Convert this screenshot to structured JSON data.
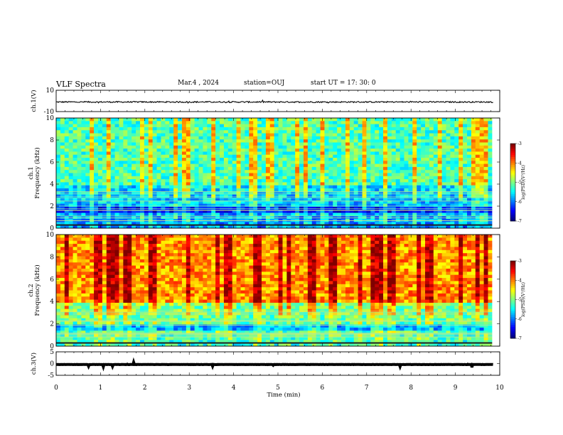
{
  "header": {
    "title": "VLF Spectra",
    "date": "Mar.4 , 2024",
    "station": "station=OUJ",
    "start": "start UT = 17: 30: 0"
  },
  "chart_data": [
    {
      "type": "line",
      "panel": "ch1-waveform",
      "ylabel": "ch.1(V)",
      "ylim": [
        -10,
        10
      ],
      "yticks": [
        "10",
        "-10"
      ],
      "xlim": [
        0,
        10
      ],
      "series": [
        {
          "level": -1,
          "noise": 0.6
        }
      ]
    },
    {
      "type": "heatmap",
      "panel": "ch1-spectrogram",
      "ylabel": "ch.1\nFrequency (kHz)",
      "ylim": [
        0,
        10
      ],
      "yticks": [
        "0",
        "2",
        "4",
        "6",
        "8",
        "10"
      ],
      "xlim": [
        0,
        9.83
      ],
      "colorbar": {
        "label": "log(PSD)(V²/Hz)",
        "range": [
          -7,
          -3
        ],
        "ticks": [
          "-3",
          "-4",
          "-5",
          "-6",
          "-7"
        ]
      },
      "intensity_profile": {
        "baseline": -5.6,
        "high_freq_level": -5.2
      }
    },
    {
      "type": "heatmap",
      "panel": "ch2-spectrogram",
      "ylabel": "ch.2\nFrequency (kHz)",
      "ylim": [
        0,
        10
      ],
      "yticks": [
        "0",
        "2",
        "4",
        "6",
        "8",
        "10"
      ],
      "xlim": [
        0,
        9.83
      ],
      "colorbar": {
        "label": "log(PSD)(V²/Hz)",
        "range": [
          -7,
          -3
        ],
        "ticks": [
          "-3",
          "-4",
          "-5",
          "-6",
          "-7"
        ]
      },
      "intensity_profile": {
        "baseline": -5.0,
        "high_freq_level": -4.1
      }
    },
    {
      "type": "line",
      "panel": "ch3-waveform",
      "ylabel": "ch.3(V)",
      "ylim": [
        -5,
        5
      ],
      "yticks": [
        "5",
        "0",
        "-5"
      ],
      "xlim": [
        0,
        10
      ],
      "series": [
        {
          "level": -0.4,
          "noise": 0.05
        }
      ]
    }
  ],
  "xaxis": {
    "label": "Time (min)",
    "ticks": [
      "0",
      "1",
      "2",
      "3",
      "4",
      "5",
      "6",
      "7",
      "8",
      "9",
      "10"
    ]
  }
}
